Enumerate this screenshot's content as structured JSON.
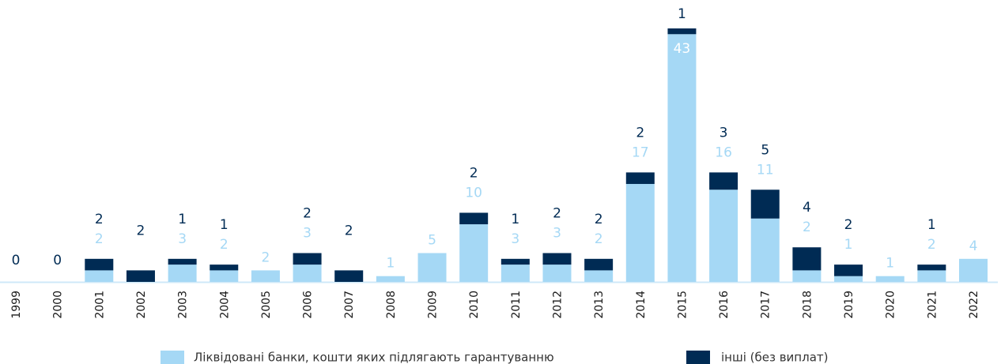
{
  "chart_data": {
    "type": "stacked_bar",
    "categories": [
      "1999",
      "2000",
      "2001",
      "2002",
      "2003",
      "2004",
      "2005",
      "2006",
      "2007",
      "2008",
      "2009",
      "2010",
      "2011",
      "2012",
      "2013",
      "2014",
      "2015",
      "2016",
      "2017",
      "2018",
      "2019",
      "2020",
      "2021",
      "2022"
    ],
    "series": [
      {
        "name": "Ліквідовані банки, кошти яких підлягають гарантуванню",
        "color": "#a5d8f5",
        "values": [
          0,
          0,
          2,
          0,
          3,
          2,
          2,
          3,
          0,
          1,
          5,
          10,
          3,
          3,
          2,
          17,
          43,
          16,
          11,
          2,
          1,
          1,
          2,
          4
        ]
      },
      {
        "name": "інші (без виплат)",
        "color": "#002b54",
        "values": [
          0,
          0,
          2,
          2,
          1,
          1,
          0,
          2,
          2,
          0,
          0,
          2,
          1,
          2,
          2,
          2,
          1,
          3,
          5,
          4,
          2,
          0,
          1,
          0
        ]
      }
    ]
  }
}
